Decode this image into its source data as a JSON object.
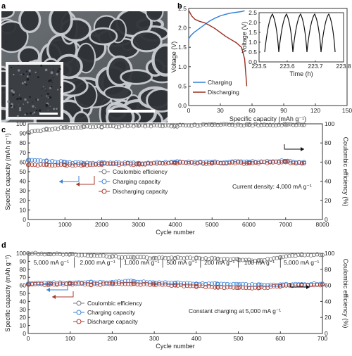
{
  "panel_labels": [
    "a",
    "b",
    "c",
    "d"
  ],
  "colors": {
    "ce": "#777777",
    "charge": "#3b82d6",
    "discharge": "#a83a2c",
    "charge_line": "#2f7ed8",
    "discharge_line": "#9b2d1f",
    "arrow_black": "#111111"
  },
  "image_a": {
    "description_icon": "sem-foam-micrograph"
  },
  "chart_data": [
    {
      "id": "b_main",
      "type": "line",
      "xlabel": "Specific capacity (mAh g⁻¹)",
      "ylabel": "Voltage (V)",
      "xlim": [
        0,
        150
      ],
      "ylim": [
        0,
        2.5
      ],
      "xticks": [
        0,
        30,
        60,
        90,
        120,
        150
      ],
      "yticks": [
        0.0,
        0.5,
        1.0,
        1.5,
        2.0,
        2.5
      ],
      "legend": [
        "Charging",
        "Discharging"
      ],
      "series": [
        {
          "name": "Charging",
          "color_key": "charge_line",
          "x": [
            0,
            2,
            5,
            10,
            15,
            20,
            25,
            30,
            35,
            40,
            45,
            50,
            53
          ],
          "y": [
            1.72,
            1.8,
            1.88,
            1.98,
            2.08,
            2.18,
            2.25,
            2.31,
            2.35,
            2.38,
            2.4,
            2.42,
            2.44
          ]
        },
        {
          "name": "Discharging",
          "color_key": "discharge_line",
          "x": [
            0,
            3,
            6,
            10,
            15,
            20,
            25,
            30,
            35,
            40,
            45,
            50,
            53,
            55
          ],
          "y": [
            2.45,
            2.3,
            2.22,
            2.17,
            2.13,
            2.06,
            1.98,
            1.88,
            1.78,
            1.7,
            1.62,
            1.5,
            1.2,
            0.5
          ]
        }
      ]
    },
    {
      "id": "b_inset",
      "type": "line",
      "xlabel": "Time (h)",
      "ylabel": "Voltage (V)",
      "xlim": [
        223.5,
        223.8
      ],
      "ylim": [
        0,
        2.5
      ],
      "xticks": [
        "223.5",
        "223.6",
        "223.7",
        "223.8"
      ],
      "yticks": [
        "0.0",
        "0.5",
        "1.0",
        "1.5",
        "2.0",
        "2.5"
      ],
      "series": [
        {
          "name": "",
          "cycles": 5,
          "t_start": 223.52,
          "period": 0.05,
          "v_min": 0.5,
          "v_max": 2.43
        }
      ]
    },
    {
      "id": "c",
      "type": "scatter",
      "xlabel": "Cycle number",
      "ylabel": "Specific capacity (mAh g⁻¹)",
      "y2label": "Coulombic efficiency (%)",
      "xlim": [
        0,
        8000
      ],
      "ylim": [
        0,
        100
      ],
      "xticks": [
        0,
        1000,
        2000,
        3000,
        4000,
        5000,
        6000,
        7000,
        8000
      ],
      "yticks": [
        0,
        10,
        20,
        30,
        40,
        50,
        60,
        70,
        80,
        90,
        100
      ],
      "y2ticks": [
        0,
        20,
        40,
        60,
        80,
        100
      ],
      "legend": [
        "Coulombic efficiency",
        "Charging capacity",
        "Discharging capacity"
      ],
      "annotation": "Current density: 4,000 mA g⁻¹",
      "series": [
        {
          "name": "Coulombic efficiency",
          "color_key": "ce",
          "x": [
            0,
            500,
            1000,
            1500,
            2000,
            3000,
            4000,
            5000,
            6000,
            7000,
            7500
          ],
          "y": [
            91,
            94,
            96,
            97,
            97,
            98,
            98,
            99,
            99,
            99,
            99
          ]
        },
        {
          "name": "Charging capacity",
          "color_key": "charge",
          "x": [
            0,
            500,
            1000,
            1500,
            2000,
            3000,
            4000,
            5000,
            6000,
            7000,
            7500
          ],
          "y": [
            62,
            61,
            60,
            59,
            59,
            59,
            60,
            60,
            60,
            61,
            60
          ]
        },
        {
          "name": "Discharging capacity",
          "color_key": "discharge",
          "x": [
            0,
            500,
            1000,
            1500,
            2000,
            3000,
            4000,
            5000,
            6000,
            7000,
            7500
          ],
          "y": [
            57,
            57,
            57,
            57,
            58,
            58,
            59,
            59,
            59,
            60,
            59
          ]
        }
      ]
    },
    {
      "id": "d",
      "type": "scatter",
      "xlabel": "Cycle number",
      "ylabel": "Specific capacity (mAh g⁻¹)",
      "y2label": "Coulombic efficiency (%)",
      "xlim": [
        0,
        700
      ],
      "ylim": [
        0,
        100
      ],
      "xticks": [
        0,
        100,
        200,
        300,
        400,
        500,
        600,
        700
      ],
      "yticks": [
        0,
        10,
        20,
        30,
        40,
        50,
        60,
        70,
        80,
        90,
        100
      ],
      "y2ticks": [
        0,
        20,
        40,
        60,
        80,
        100
      ],
      "legend": [
        "Coulombic efficiency",
        "Charging capacity",
        "Discharge capacity"
      ],
      "annotation": "Constant charging at 5,000 mA g⁻¹",
      "segments": [
        {
          "label": "5,000 mA g⁻¹",
          "from": 0,
          "to": 110
        },
        {
          "label": "2,000 mA g⁻¹",
          "from": 110,
          "to": 220
        },
        {
          "label": "1,000 mA g⁻¹",
          "from": 220,
          "to": 320
        },
        {
          "label": "500 mA g⁻¹",
          "from": 320,
          "to": 410
        },
        {
          "label": "200 mA g⁻¹",
          "from": 410,
          "to": 500
        },
        {
          "label": "100 mA g⁻¹",
          "from": 500,
          "to": 600
        },
        {
          "label": "5,000 mA g⁻¹",
          "from": 600,
          "to": 700
        }
      ],
      "series": [
        {
          "name": "Coulombic efficiency",
          "color_key": "ce",
          "x": [
            0,
            50,
            100,
            150,
            200,
            250,
            300,
            350,
            400,
            450,
            500,
            550,
            600,
            650,
            700
          ],
          "y": [
            100,
            99,
            99,
            97,
            96,
            95,
            94,
            94,
            94,
            93,
            92,
            91,
            95,
            98,
            98
          ]
        },
        {
          "name": "Charging capacity",
          "color_key": "charge",
          "x": [
            0,
            50,
            100,
            150,
            200,
            250,
            300,
            350,
            400,
            450,
            500,
            550,
            600,
            650,
            700
          ],
          "y": [
            62,
            63,
            63,
            64,
            64,
            65,
            63,
            63,
            62,
            62,
            61,
            61,
            61,
            61,
            62
          ]
        },
        {
          "name": "Discharge capacity",
          "color_key": "discharge",
          "x": [
            0,
            50,
            100,
            150,
            200,
            250,
            300,
            350,
            400,
            450,
            500,
            550,
            600,
            650,
            700
          ],
          "y": [
            61,
            61,
            62,
            61,
            62,
            62,
            61,
            60,
            59,
            58,
            57,
            57,
            59,
            60,
            61
          ]
        }
      ]
    }
  ]
}
